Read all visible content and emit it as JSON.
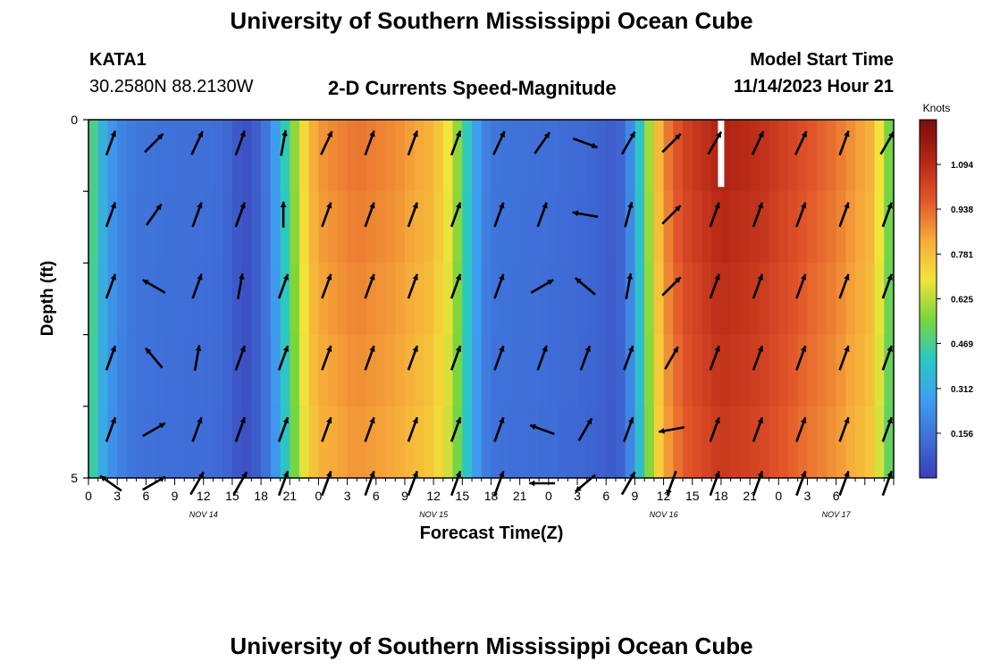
{
  "page": {
    "title": "University of Southern Mississippi Ocean Cube",
    "station": "KATA1",
    "coords": "30.2580N  88.2130W",
    "product": "2-D Currents Speed-Magnitude",
    "start_label": "Model Start Time",
    "start_value": "11/14/2023 Hour 21",
    "footer_title": "University of Southern Mississippi Ocean Cube"
  },
  "colors": {
    "scale": [
      "#3b3fb8",
      "#3f6fd8",
      "#3f9ef0",
      "#2bc9c0",
      "#7ad63c",
      "#f4e33a",
      "#f6a83a",
      "#e2542a",
      "#b32514",
      "#7a0c0c"
    ],
    "arrow": "#000000"
  },
  "chart_data": {
    "type": "heatmap",
    "title": "2-D Currents Speed-Magnitude",
    "xlabel": "Forecast Time(Z)",
    "ylabel": "Depth (ft)",
    "x_range_hours": [
      0,
      84
    ],
    "y_range_ft": [
      0,
      5
    ],
    "y_ticks": [
      "0",
      "5"
    ],
    "x_ticks": [
      "0",
      "3",
      "6",
      "9",
      "12",
      "15",
      "18",
      "21",
      "0",
      "3",
      "6",
      "9",
      "12",
      "15",
      "18",
      "21",
      "0",
      "3",
      "6",
      "9",
      "12",
      "15",
      "18",
      "21",
      "0",
      "3",
      "6"
    ],
    "day_labels": [
      {
        "label": "NOV 14",
        "hour": 12
      },
      {
        "label": "NOV 15",
        "hour": 36
      },
      {
        "label": "NOV 16",
        "hour": 60
      },
      {
        "label": "NOV 17",
        "hour": 78
      }
    ],
    "colorbar": {
      "unit": "Knots",
      "min": 0,
      "max": 1.25,
      "ticks": [
        "1.094",
        "0.938",
        "0.781",
        "0.625",
        "0.469",
        "0.312",
        "0.156"
      ],
      "tick_values": [
        1.094,
        0.938,
        0.781,
        0.625,
        0.469,
        0.312,
        0.156
      ]
    },
    "speed_knots_by_hour": [
      [
        0,
        0.55
      ],
      [
        1,
        0.4
      ],
      [
        2,
        0.28
      ],
      [
        3,
        0.22
      ],
      [
        4,
        0.18
      ],
      [
        5,
        0.16
      ],
      [
        8,
        0.15
      ],
      [
        12,
        0.14
      ],
      [
        14,
        0.13
      ],
      [
        15,
        0.1
      ],
      [
        16,
        0.05
      ],
      [
        17,
        0.06
      ],
      [
        18,
        0.12
      ],
      [
        19,
        0.2
      ],
      [
        20,
        0.35
      ],
      [
        21,
        0.5
      ],
      [
        22,
        0.66
      ],
      [
        23,
        0.78
      ],
      [
        24,
        0.86
      ],
      [
        28,
        0.92
      ],
      [
        32,
        0.88
      ],
      [
        36,
        0.8
      ],
      [
        38,
        0.66
      ],
      [
        39,
        0.5
      ],
      [
        40,
        0.35
      ],
      [
        41,
        0.22
      ],
      [
        42,
        0.16
      ],
      [
        48,
        0.14
      ],
      [
        52,
        0.12
      ],
      [
        54,
        0.1
      ],
      [
        55,
        0.08
      ],
      [
        56,
        0.14
      ],
      [
        57,
        0.3
      ],
      [
        58,
        0.5
      ],
      [
        59,
        0.7
      ],
      [
        60,
        0.88
      ],
      [
        62,
        1.02
      ],
      [
        66,
        1.12
      ],
      [
        70,
        1.08
      ],
      [
        74,
        1.0
      ],
      [
        78,
        0.92
      ],
      [
        82,
        0.8
      ],
      [
        83,
        0.6
      ],
      [
        84,
        0.5
      ]
    ],
    "missing_cell": {
      "hour": 66,
      "depth_ft": 0.25
    },
    "depths_ft": [
      0.25,
      1.25,
      2.25,
      3.25,
      4.25,
      5.0
    ],
    "vector_times_hours": [
      0,
      4.5,
      9,
      13.5,
      18,
      22.5,
      27,
      31.5,
      36,
      40.5,
      45,
      49.5,
      54,
      58.5,
      63,
      67.5,
      72,
      76.5,
      81
    ],
    "vector_directions_deg": [
      [
        200,
        225,
        205,
        200,
        190,
        205,
        200,
        200,
        200,
        205,
        215,
        290,
        210,
        225,
        210,
        205,
        205,
        200,
        210
      ],
      [
        200,
        215,
        200,
        200,
        180,
        200,
        200,
        200,
        200,
        200,
        200,
        100,
        195,
        225,
        200,
        200,
        200,
        200,
        200
      ],
      [
        200,
        120,
        200,
        190,
        200,
        200,
        200,
        200,
        200,
        200,
        240,
        130,
        190,
        225,
        200,
        200,
        200,
        200,
        200
      ],
      [
        200,
        140,
        190,
        200,
        200,
        200,
        200,
        200,
        200,
        200,
        200,
        200,
        200,
        210,
        200,
        200,
        200,
        200,
        200
      ],
      [
        200,
        240,
        200,
        200,
        200,
        200,
        200,
        200,
        200,
        200,
        110,
        210,
        200,
        80,
        200,
        200,
        200,
        200,
        200
      ],
      [
        125,
        240,
        210,
        210,
        200,
        200,
        200,
        200,
        200,
        200,
        90,
        50,
        210,
        20,
        200,
        200,
        200,
        200,
        200
      ]
    ]
  }
}
